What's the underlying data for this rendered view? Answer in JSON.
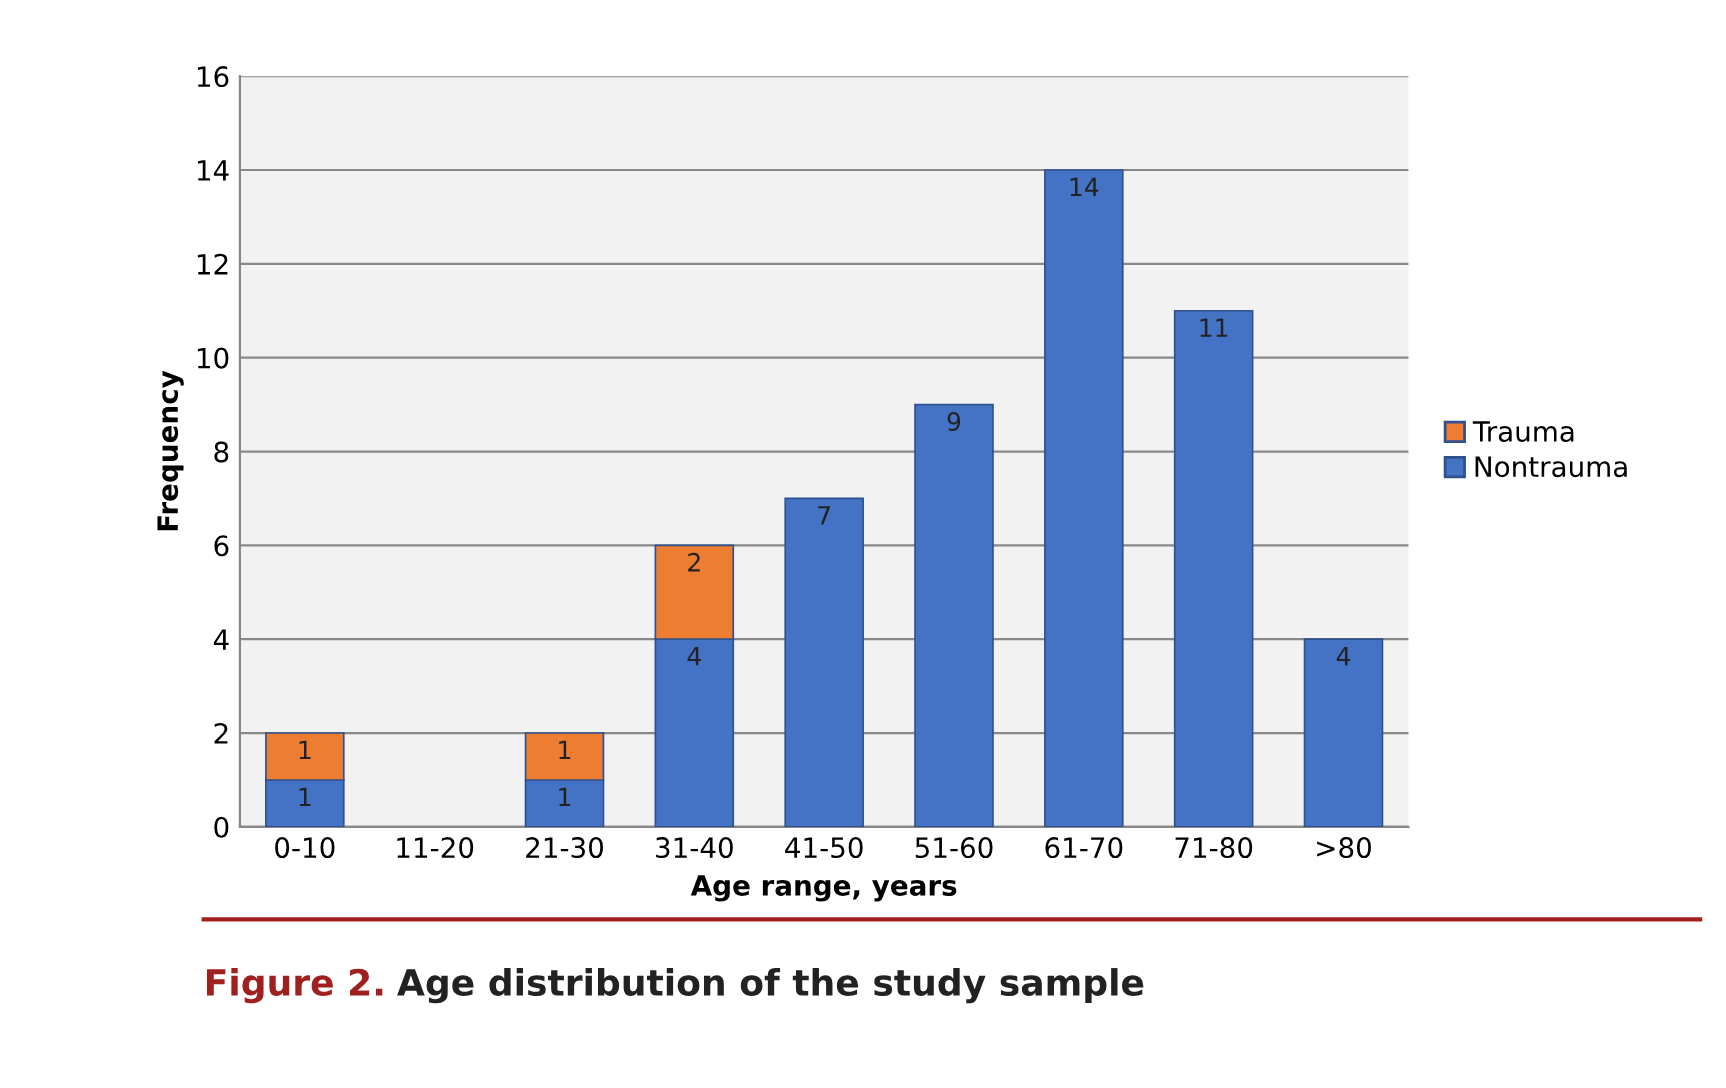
{
  "chart_data": {
    "type": "bar",
    "stacked": true,
    "xlabel": "Age range, years",
    "ylabel": "Frequency",
    "categories": [
      "0-10",
      "11-20",
      "21-30",
      "31-40",
      "41-50",
      "51-60",
      "61-70",
      "71-80",
      ">80"
    ],
    "series": [
      {
        "name": "Nontrauma",
        "color": "#4472c4",
        "values": [
          1,
          0,
          1,
          4,
          7,
          9,
          14,
          11,
          4
        ],
        "value_labels": [
          "1",
          null,
          "1",
          "4",
          "7",
          "9",
          "14",
          "11",
          "4"
        ]
      },
      {
        "name": "Trauma",
        "color": "#ed7d31",
        "values": [
          1,
          0,
          1,
          2,
          0,
          0,
          0,
          0,
          0
        ],
        "value_labels": [
          "1",
          null,
          "1",
          "2",
          null,
          null,
          null,
          null,
          null
        ]
      }
    ],
    "ylim": [
      0,
      16
    ],
    "yticks": [
      0,
      2,
      4,
      6,
      8,
      10,
      12,
      14,
      16
    ],
    "grid": "y",
    "legend": "right",
    "annotations": [
      "Figure 2.",
      "Age distribution of the study sample"
    ]
  }
}
